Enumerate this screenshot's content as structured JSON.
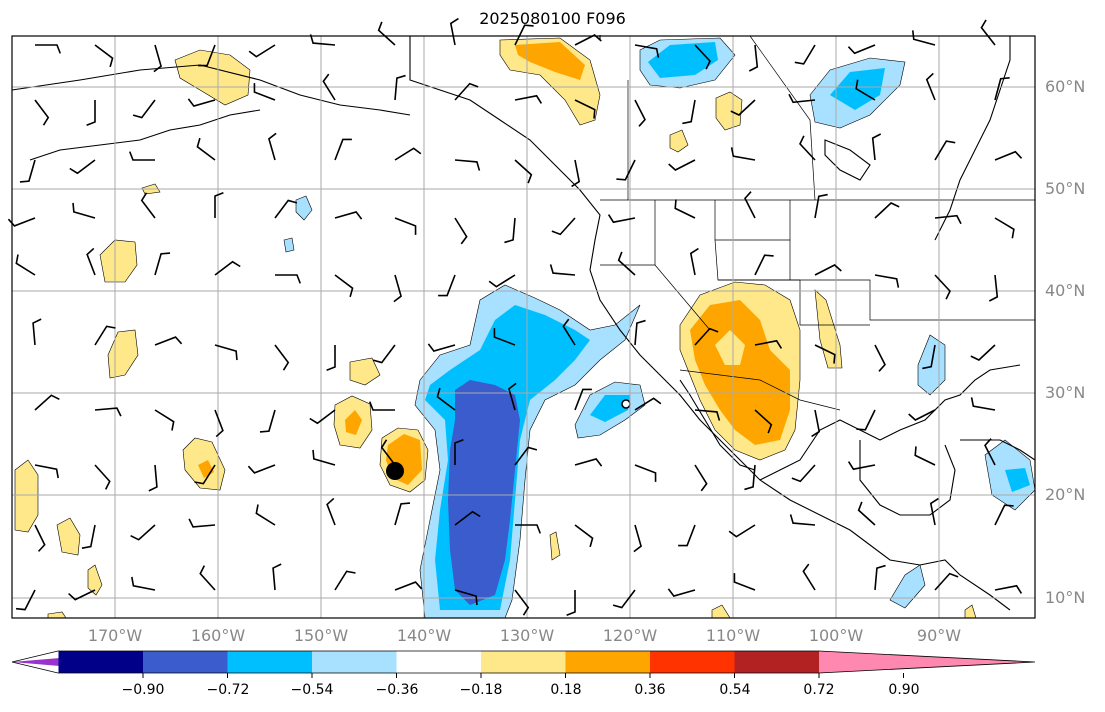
{
  "title": "2025080100 F096",
  "lat_labels": [
    "60°N",
    "50°N",
    "40°N",
    "30°N",
    "20°N",
    "10°N"
  ],
  "lon_labels": [
    "170°W",
    "160°W",
    "150°W",
    "140°W",
    "130°W",
    "120°W",
    "110°W",
    "100°W",
    "90°W"
  ],
  "colorbar": {
    "tick_labels": [
      "−0.90",
      "−0.72",
      "−0.54",
      "−0.36",
      "−0.18",
      "0.18",
      "0.36",
      "0.54",
      "0.72",
      "0.90"
    ],
    "colors": [
      "#9933cc",
      "#000088",
      "#3a5ccc",
      "#00bfff",
      "#a8e0ff",
      "#ffffff",
      "#ffe88a",
      "#ffa500",
      "#ff3300",
      "#b22222",
      "#ff88b0"
    ]
  },
  "map": {
    "extent_lon": [
      -180,
      -80
    ],
    "extent_lat": [
      8,
      65
    ],
    "gridlines": true
  }
}
